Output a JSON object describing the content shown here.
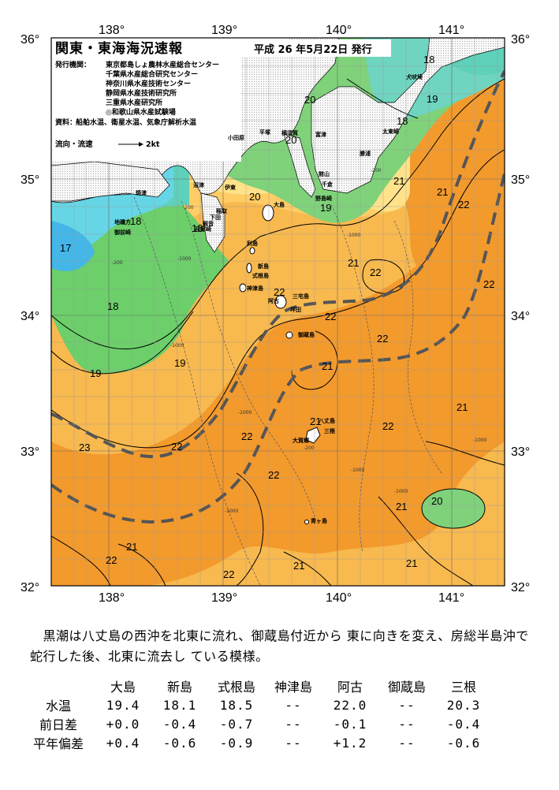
{
  "map": {
    "title": "関東・東海海況速報",
    "issued": "平成 26 年5月22日 発行",
    "issuer_label": "発行機関：",
    "issuers": [
      "東京都島しょ農林水産総合センター",
      "千葉県水産総合研究センター",
      "神奈川県水産技術センター",
      "静岡県水産技術研究所",
      "三重県水産研究所",
      "◎和歌山県水産試験場"
    ],
    "sources_label": "資料：",
    "sources": "船舶水温、衛星水温、気象庁解析水温",
    "flow_label": "流向・流速",
    "flow_scale": "2kt",
    "lon_labels": [
      "138°",
      "139°",
      "140°",
      "141°"
    ],
    "lat_labels": [
      "36°",
      "35°",
      "34°",
      "33°",
      "32°"
    ],
    "isotherm_labels": [
      "18",
      "20",
      "19",
      "18",
      "20",
      "21",
      "22",
      "22",
      "19",
      "20",
      "18",
      "18",
      "17",
      "18",
      "19",
      "21",
      "22",
      "22",
      "22",
      "19",
      "22",
      "21",
      "21",
      "22",
      "21",
      "22",
      "23",
      "22",
      "22",
      "22",
      "21",
      "20",
      "21",
      "21",
      "22",
      "21",
      "21",
      "20"
    ],
    "place_labels": [
      "犬吠埼",
      "太東崎",
      "勝浦",
      "野島崎",
      "横須賀",
      "平塚",
      "小田原",
      "館山",
      "千倉",
      "富津",
      "大島",
      "利島",
      "新島",
      "式根島",
      "神津島",
      "三宅島",
      "御蔵島",
      "八丈島",
      "青ヶ島",
      "石廊崎",
      "下田",
      "稲取",
      "焼津",
      "御前崎",
      "沼津",
      "伊東",
      "阿古",
      "坪田",
      "三根",
      "大賀郷",
      "地磯方",
      "観音"
    ],
    "depth_labels": [
      "-200",
      "-1000",
      "-200",
      "-1000",
      "-1000",
      "-1000",
      "-200",
      "-1000",
      "-200",
      "-1000",
      "-1000",
      "-1000"
    ]
  },
  "description": "　黒潮は八丈島の西沖を北東に流れ、御蔵島付近から 東に向きを変え、房総半島沖で蛇行した後、北東に流去し ている模様。",
  "table": {
    "columns": [
      "大島",
      "新島",
      "式根島",
      "神津島",
      "阿古",
      "御蔵島",
      "三根"
    ],
    "rows": [
      {
        "label": "水温",
        "values": [
          "19.4",
          "18.1",
          "18.5",
          "--",
          "22.0",
          "--",
          "20.3"
        ]
      },
      {
        "label": "前日差",
        "values": [
          "+0.0",
          "-0.4",
          "-0.7",
          "--",
          "-0.1",
          "--",
          "-0.4"
        ]
      },
      {
        "label": "平年偏差",
        "values": [
          "+0.4",
          "-0.6",
          "-0.9",
          "--",
          "+1.2",
          "--",
          "-0.6"
        ]
      }
    ]
  }
}
